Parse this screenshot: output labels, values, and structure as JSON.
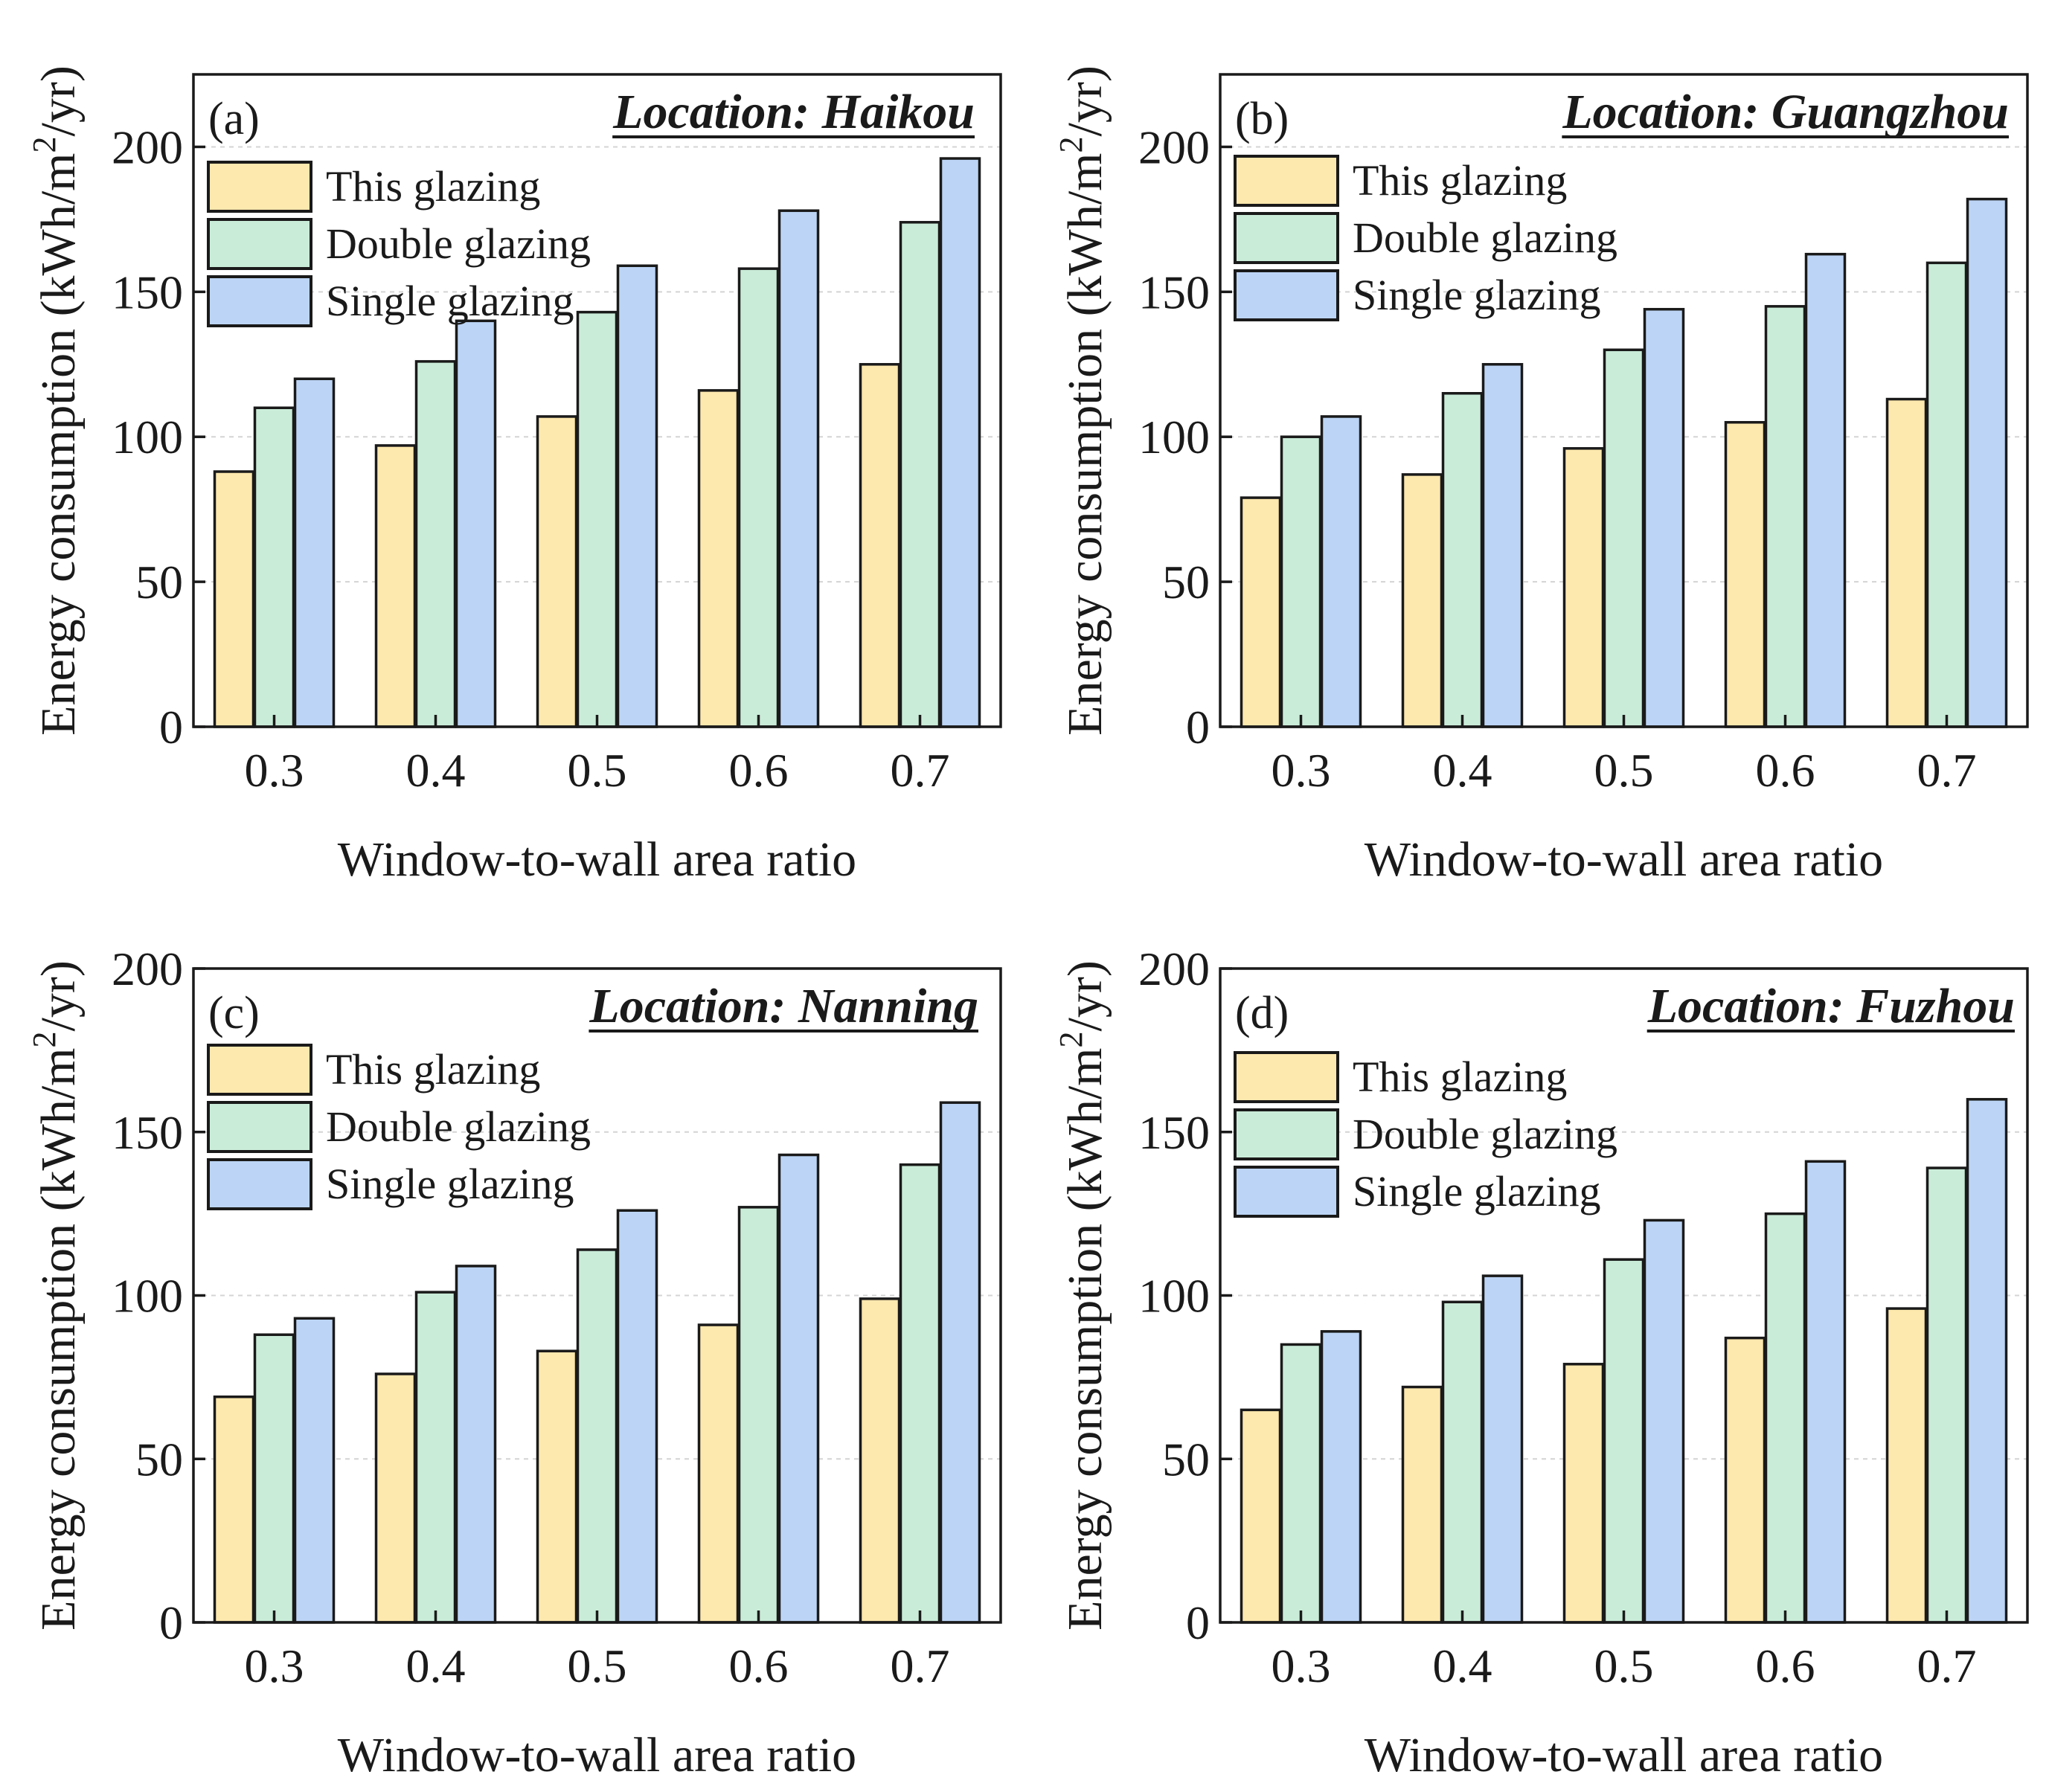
{
  "chart_data": [
    {
      "type": "bar",
      "panel_label": "(a)",
      "title": "Location: Haikou",
      "categories": [
        "0.3",
        "0.4",
        "0.5",
        "0.6",
        "0.7"
      ],
      "series": [
        {
          "name": "This glazing",
          "values": [
            88,
            97,
            107,
            116,
            125
          ]
        },
        {
          "name": "Double glazing",
          "values": [
            110,
            126,
            143,
            158,
            174
          ]
        },
        {
          "name": "Single glazing",
          "values": [
            120,
            140,
            159,
            178,
            196
          ]
        }
      ],
      "ylim": [
        0,
        225
      ],
      "yticks": [
        0,
        50,
        100,
        150,
        200
      ],
      "xlabel": "Window-to-wall area ratio",
      "ylabel_pre": "Energy consumption (kWh/m",
      "ylabel_sup": "2",
      "ylabel_post": "/yr)",
      "legend_position": "top-left",
      "grid": true
    },
    {
      "type": "bar",
      "panel_label": "(b)",
      "title": "Location: Guangzhou",
      "categories": [
        "0.3",
        "0.4",
        "0.5",
        "0.6",
        "0.7"
      ],
      "series": [
        {
          "name": "This glazing",
          "values": [
            79,
            87,
            96,
            105,
            113
          ]
        },
        {
          "name": "Double glazing",
          "values": [
            100,
            115,
            130,
            145,
            160
          ]
        },
        {
          "name": "Single glazing",
          "values": [
            107,
            125,
            144,
            163,
            182
          ]
        }
      ],
      "ylim": [
        0,
        225
      ],
      "yticks": [
        0,
        50,
        100,
        150,
        200
      ],
      "xlabel": "Window-to-wall area ratio",
      "ylabel_pre": "Energy consumption (kWh/m",
      "ylabel_sup": "2",
      "ylabel_post": "/yr)",
      "legend_position": "top-left",
      "grid": true
    },
    {
      "type": "bar",
      "panel_label": "(c)",
      "title": "Location: Nanning",
      "categories": [
        "0.3",
        "0.4",
        "0.5",
        "0.6",
        "0.7"
      ],
      "series": [
        {
          "name": "This glazing",
          "values": [
            69,
            76,
            83,
            91,
            99
          ]
        },
        {
          "name": "Double glazing",
          "values": [
            88,
            101,
            114,
            127,
            140
          ]
        },
        {
          "name": "Single glazing",
          "values": [
            93,
            109,
            126,
            143,
            159
          ]
        }
      ],
      "ylim": [
        0,
        200
      ],
      "yticks": [
        0,
        50,
        100,
        150,
        200
      ],
      "xlabel": "Window-to-wall area ratio",
      "ylabel_pre": "Energy consumption (kWh/m",
      "ylabel_sup": "2",
      "ylabel_post": "/yr)",
      "legend_position": "top-left",
      "grid": true
    },
    {
      "type": "bar",
      "panel_label": "(d)",
      "title": "Location: Fuzhou",
      "categories": [
        "0.3",
        "0.4",
        "0.5",
        "0.6",
        "0.7"
      ],
      "series": [
        {
          "name": "This glazing",
          "values": [
            65,
            72,
            79,
            87,
            96
          ]
        },
        {
          "name": "Double glazing",
          "values": [
            85,
            98,
            111,
            125,
            139
          ]
        },
        {
          "name": "Single glazing",
          "values": [
            89,
            106,
            123,
            141,
            160
          ]
        }
      ],
      "ylim": [
        0,
        200
      ],
      "yticks": [
        0,
        50,
        100,
        150,
        200
      ],
      "xlabel": "Window-to-wall area ratio",
      "ylabel_pre": "Energy consumption (kWh/m",
      "ylabel_sup": "2",
      "ylabel_post": "/yr)",
      "legend_position": "top-left",
      "grid": true
    }
  ],
  "colors": {
    "This glazing": "#fde8ad",
    "Double glazing": "#c9ecd8",
    "Single glazing": "#bcd5f6"
  }
}
